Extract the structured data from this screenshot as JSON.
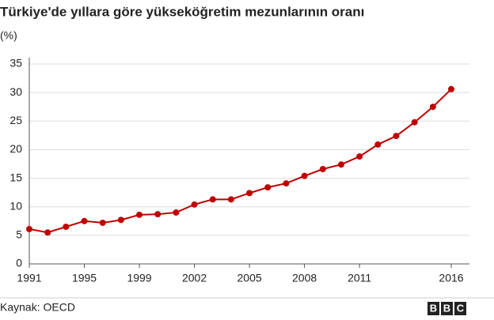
{
  "chart_data": {
    "type": "line",
    "title": "Türkiye'de yıllara göre yükseköğretim mezunlarının oranı",
    "y_label": "(%)",
    "categories": [
      "1991",
      null,
      null,
      "1995",
      null,
      null,
      "1999",
      null,
      null,
      "2002",
      null,
      null,
      "2005",
      null,
      null,
      "2008",
      null,
      null,
      "2011",
      null,
      null,
      null,
      null,
      "2016"
    ],
    "series": [
      {
        "color": "#c00000",
        "values": [
          6.1,
          5.5,
          6.5,
          7.5,
          7.2,
          7.7,
          8.6,
          8.7,
          9.0,
          10.4,
          11.3,
          11.3,
          12.4,
          13.4,
          14.1,
          15.4,
          16.6,
          17.4,
          18.8,
          20.9,
          22.4,
          24.8,
          27.5,
          30.6
        ]
      }
    ],
    "ylim": [
      0,
      35
    ],
    "yticks": [
      0,
      5,
      10,
      15,
      20,
      25,
      30,
      35
    ],
    "grid": true
  },
  "footer": {
    "source": "Kaynak: OECD",
    "logo": [
      "B",
      "B",
      "C"
    ]
  }
}
